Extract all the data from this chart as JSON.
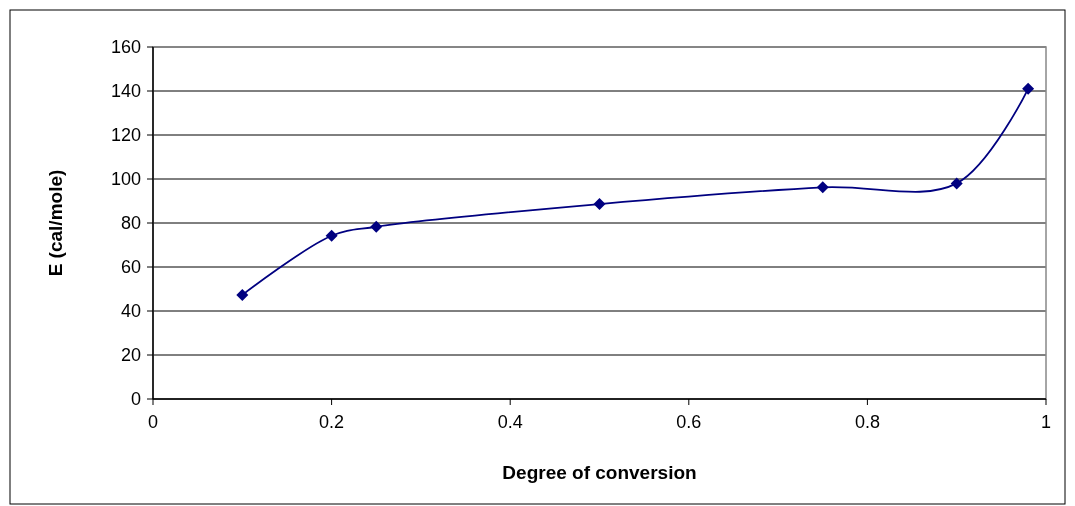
{
  "chart_data": {
    "type": "line",
    "xlabel": "Degree of conversion",
    "ylabel": "E (cal/mole)",
    "x": [
      0.1,
      0.2,
      0.25,
      0.5,
      0.75,
      0.9,
      0.98
    ],
    "series": [
      {
        "color": "#000080",
        "values": [
          47.3,
          74.2,
          78.3,
          88.6,
          96.2,
          98,
          141
        ]
      }
    ],
    "xlim": [
      0,
      1
    ],
    "xticks": [
      0,
      0.2,
      0.4,
      0.6,
      0.8,
      1
    ],
    "ylim": [
      0,
      160
    ],
    "yticks": [
      0,
      20,
      40,
      60,
      80,
      100,
      120,
      140,
      160
    ],
    "grid": "y",
    "marker": "diamond",
    "line_style": "solid"
  }
}
